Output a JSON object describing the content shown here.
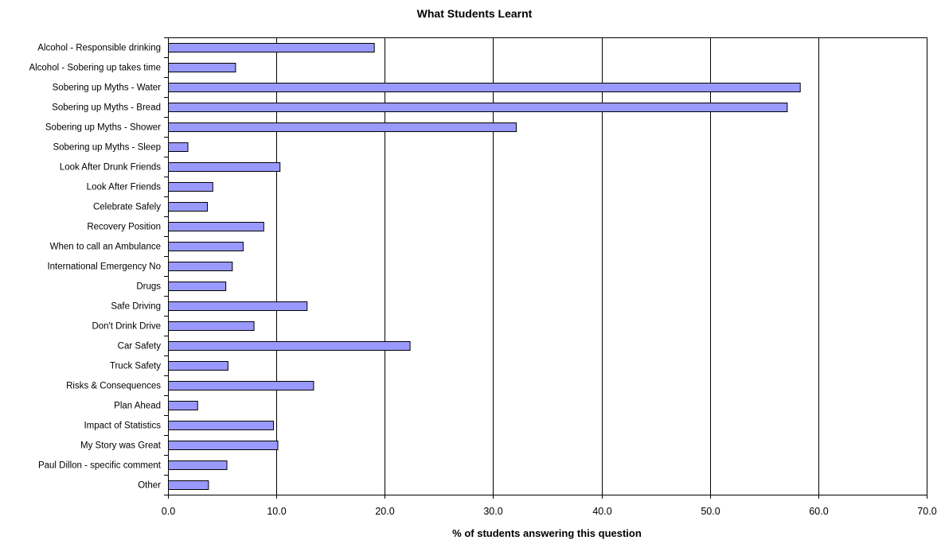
{
  "chart_data": {
    "type": "bar",
    "orientation": "horizontal",
    "title": "What Students Learnt",
    "xlabel": "% of students answering this question",
    "ylabel": "",
    "xlim": [
      0,
      70
    ],
    "xticks": [
      "0.0",
      "10.0",
      "20.0",
      "30.0",
      "40.0",
      "50.0",
      "60.0",
      "70.0"
    ],
    "grid": "vertical major gridlines",
    "legend": "none",
    "bar_color": "#9999ff",
    "categories": [
      "Alcohol - Responsible drinking",
      "Alcohol - Sobering up takes time",
      "Sobering up Myths - Water",
      "Sobering up Myths - Bread",
      "Sobering up Myths - Shower",
      "Sobering up Myths - Sleep",
      "Look After Drunk Friends",
      "Look After Friends",
      "Celebrate Safely",
      "Recovery Position",
      "When to call an Ambulance",
      "International Emergency No",
      "Drugs",
      "Safe Driving",
      "Don't Drink Drive",
      "Car Safety",
      "Truck Safety",
      "Risks & Consequences",
      "Plan Ahead",
      "Impact of Statistics",
      "My Story was Great",
      "Paul Dillon - specific comment",
      "Other"
    ],
    "values": [
      19.0,
      6.2,
      58.3,
      57.1,
      32.1,
      1.8,
      10.3,
      4.1,
      3.6,
      8.8,
      6.9,
      5.9,
      5.3,
      12.8,
      7.9,
      22.3,
      5.5,
      13.4,
      2.7,
      9.7,
      10.1,
      5.4,
      3.7
    ]
  }
}
